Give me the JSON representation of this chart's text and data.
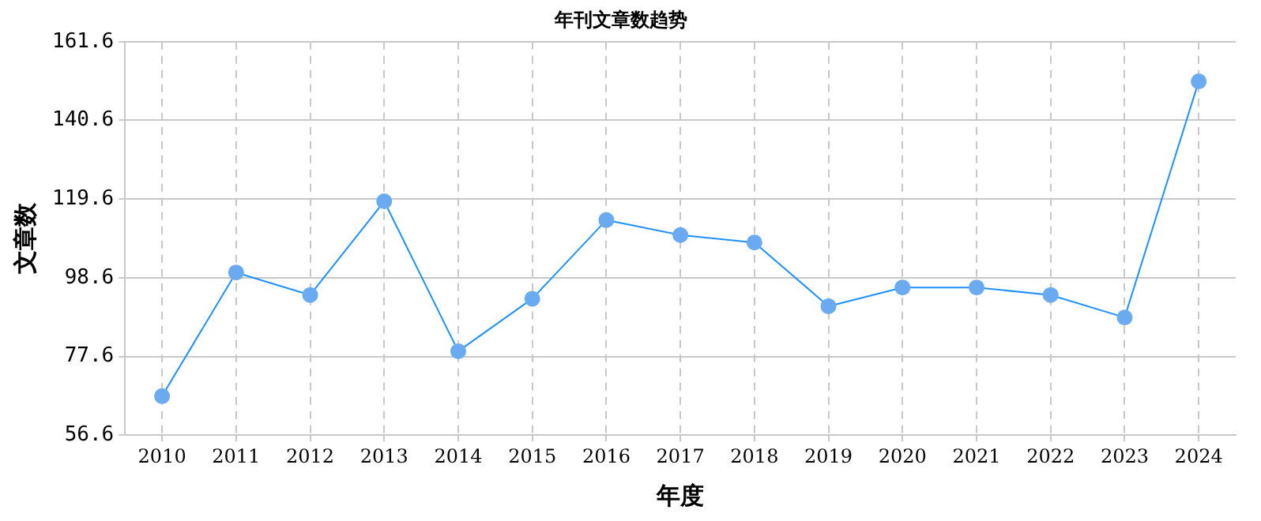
{
  "chart_data": {
    "type": "line",
    "title": "年刊文章数趋势",
    "xlabel": "年度",
    "ylabel": "文章数",
    "categories": [
      "2010",
      "2011",
      "2012",
      "2013",
      "2014",
      "2015",
      "2016",
      "2017",
      "2018",
      "2019",
      "2020",
      "2021",
      "2022",
      "2023",
      "2024"
    ],
    "series": [
      {
        "color": "#1e90ff",
        "values": [
          67,
          100,
          94,
          119,
          79,
          93,
          114,
          110,
          108,
          91,
          96,
          96,
          94,
          88,
          151
        ]
      }
    ],
    "ylim": [
      56.6,
      161.6
    ],
    "yticks": [
      56.6,
      77.6,
      98.6,
      119.6,
      140.6,
      161.6
    ],
    "grid": true,
    "legend": false,
    "marker": "circle",
    "line_style": "solid"
  }
}
